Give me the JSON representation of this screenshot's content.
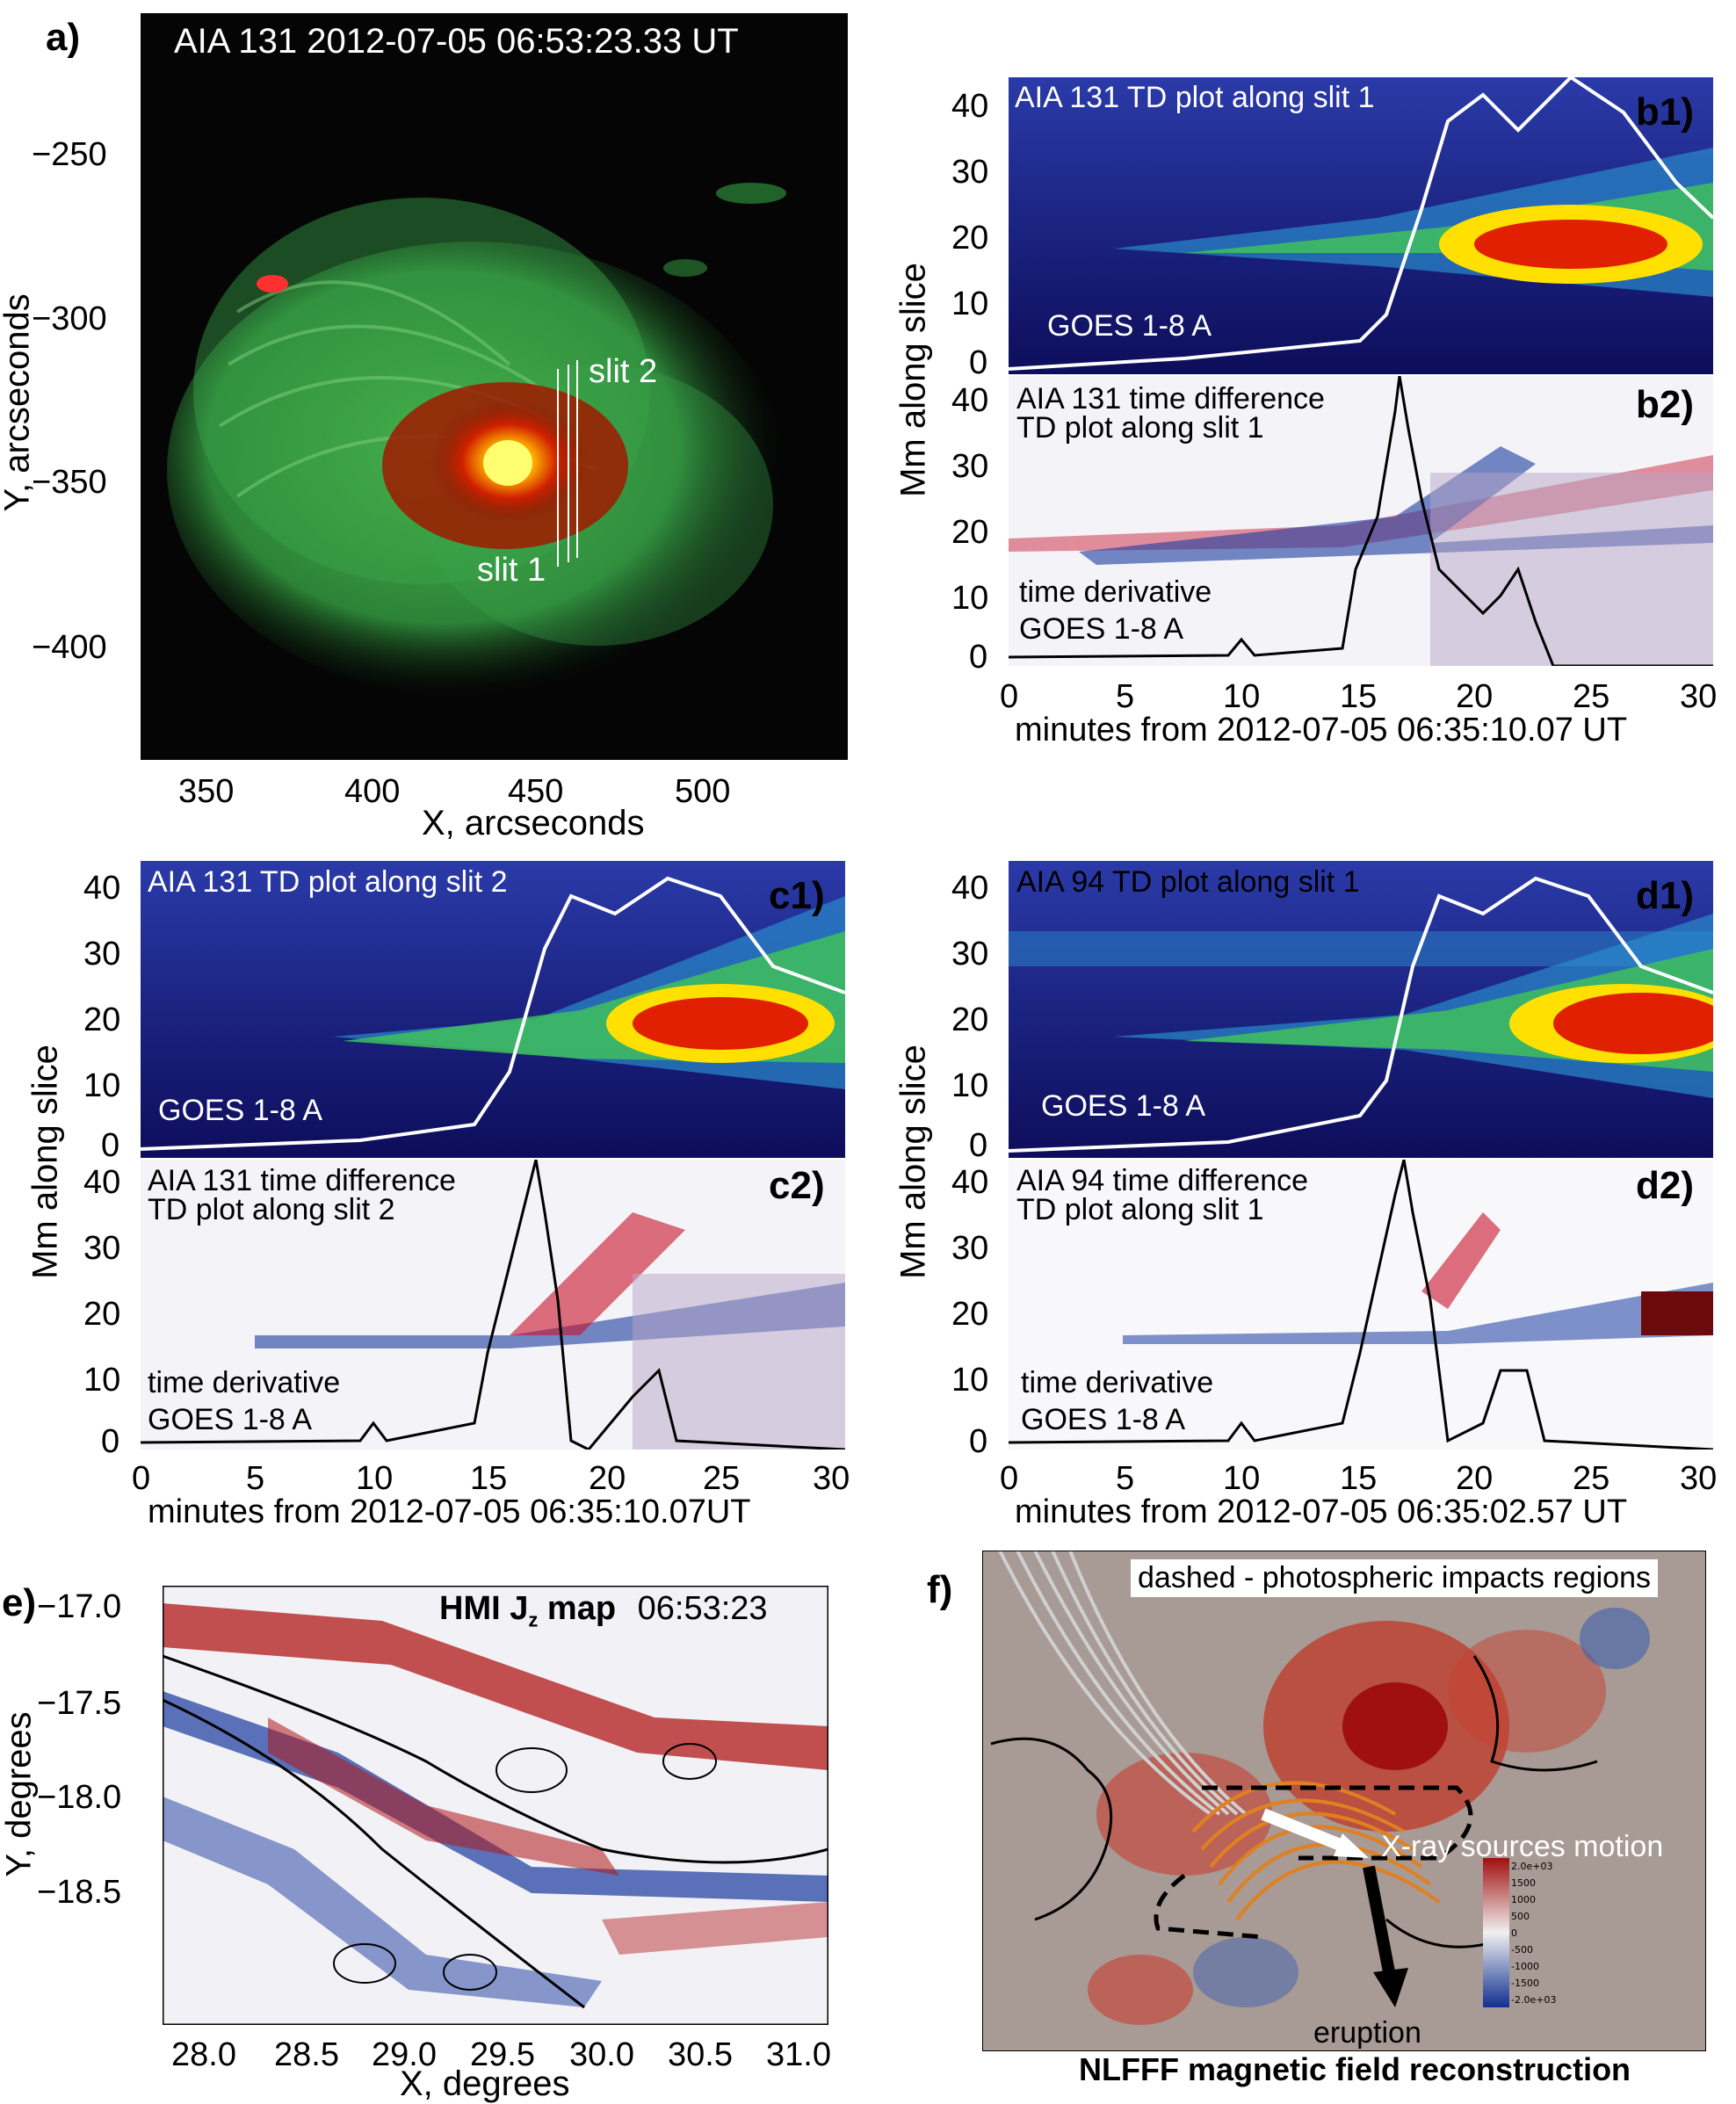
{
  "figure": {
    "panel_a": {
      "label": "a)",
      "title": "AIA 131 2012-07-05 06:53:23.33 UT",
      "slit1": "slit 1",
      "slit2": "slit 2",
      "xlabel": "X, arcseconds",
      "ylabel": "Y, arcseconds",
      "xticks": [
        "350",
        "400",
        "450",
        "500"
      ],
      "yticks": [
        "−250",
        "−300",
        "−350",
        "−400"
      ]
    },
    "panel_b": {
      "b1_label": "b1)",
      "b1_title": "AIA 131 TD plot along slit 1",
      "b1_curve": "GOES 1-8 A",
      "b2_label": "b2)",
      "b2_title1": "AIA 131 time difference",
      "b2_title2": "TD plot along slit 1",
      "b2_curve1": "time derivative",
      "b2_curve2": "GOES 1-8 A",
      "ylabel": "Mm along slice",
      "xlabel": "minutes from 2012-07-05 06:35:10.07 UT"
    },
    "panel_c": {
      "c1_label": "c1)",
      "c1_title": "AIA 131 TD plot along slit 2",
      "c1_curve": "GOES 1-8 A",
      "c2_label": "c2)",
      "c2_title1": "AIA 131 time difference",
      "c2_title2": "TD plot along slit 2",
      "c2_curve1": "time derivative",
      "c2_curve2": "GOES 1-8 A",
      "ylabel": "Mm along slice",
      "xlabel": "minutes from 2012-07-05 06:35:10.07UT"
    },
    "panel_d": {
      "d1_label": "d1)",
      "d1_title": "AIA 94 TD plot along slit 1",
      "d1_curve": "GOES 1-8 A",
      "d2_label": "d2)",
      "d2_title1": "AIA 94 time difference",
      "d2_title2": "TD plot along slit 1",
      "d2_curve1": "time derivative",
      "d2_curve2": "GOES 1-8 A",
      "ylabel": "Mm along slice",
      "xlabel": "minutes from 2012-07-05 06:35:02.57 UT"
    },
    "td_yticks": [
      "40",
      "30",
      "20",
      "10",
      "0"
    ],
    "td_xticks": [
      "0",
      "5",
      "10",
      "15",
      "20",
      "25",
      "30"
    ],
    "panel_e": {
      "label": "e)",
      "title": "HMI J",
      "title_sub": "z",
      "title_rest": " map",
      "time": "06:53:23",
      "xlabel": "X, degrees",
      "ylabel": "Y, degrees",
      "xticks": [
        "28.0",
        "28.5",
        "29.0",
        "29.5",
        "30.0",
        "30.5",
        "31.0"
      ],
      "yticks": [
        "−17.0",
        "−17.5",
        "−18.0",
        "−18.5"
      ]
    },
    "panel_f": {
      "label": "f)",
      "note": "dashed - photospheric impacts regions",
      "motion": "X-ray sources motion",
      "eruption": "eruption",
      "caption": "NLFFF magnetic field reconstruction",
      "colorbar": [
        "2.0e+03",
        "1500",
        "1000",
        "500",
        "0",
        "-500",
        "-1000",
        "-1500",
        "-2.0e+03"
      ]
    }
  },
  "colors": {
    "td_background": "#1a1a6e",
    "td_green": "#3fbf5a",
    "diff_red": "#b01818",
    "diff_blue": "#1a3aa0",
    "goes_curve_white": "#ffffff",
    "goes_curve_black": "#000000",
    "aia_green": "#2e8a3a"
  }
}
